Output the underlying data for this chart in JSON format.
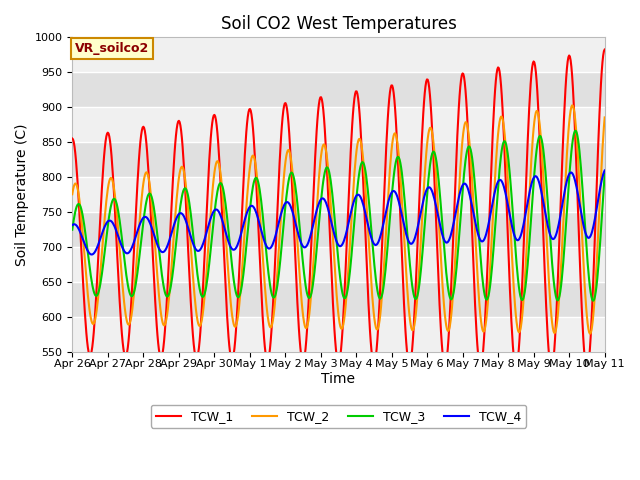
{
  "title": "Soil CO2 West Temperatures",
  "xlabel": "Time",
  "ylabel": "Soil Temperature (C)",
  "ylim": [
    550,
    1000
  ],
  "yticks": [
    550,
    600,
    650,
    700,
    750,
    800,
    850,
    900,
    950,
    1000
  ],
  "legend_label": "VR_soilco2",
  "series": [
    "TCW_1",
    "TCW_2",
    "TCW_3",
    "TCW_4"
  ],
  "colors": [
    "#ff0000",
    "#ff9900",
    "#00cc00",
    "#0000ff"
  ],
  "xtick_labels": [
    "Apr 26",
    "Apr 27",
    "Apr 28",
    "Apr 29",
    "Apr 30",
    "May 1",
    "May 2",
    "May 3",
    "May 4",
    "May 5",
    "May 6",
    "May 7",
    "May 8",
    "May 9",
    "May 10",
    "May 11"
  ],
  "n_days": 15,
  "samples_per_day": 48,
  "background_color": "#ffffff",
  "plot_bg_light": "#f0f0f0",
  "plot_bg_dark": "#e0e0e0",
  "grid_color": "#ffffff",
  "title_fontsize": 12,
  "axis_label_fontsize": 10,
  "tick_fontsize": 8,
  "line_width": 1.5
}
